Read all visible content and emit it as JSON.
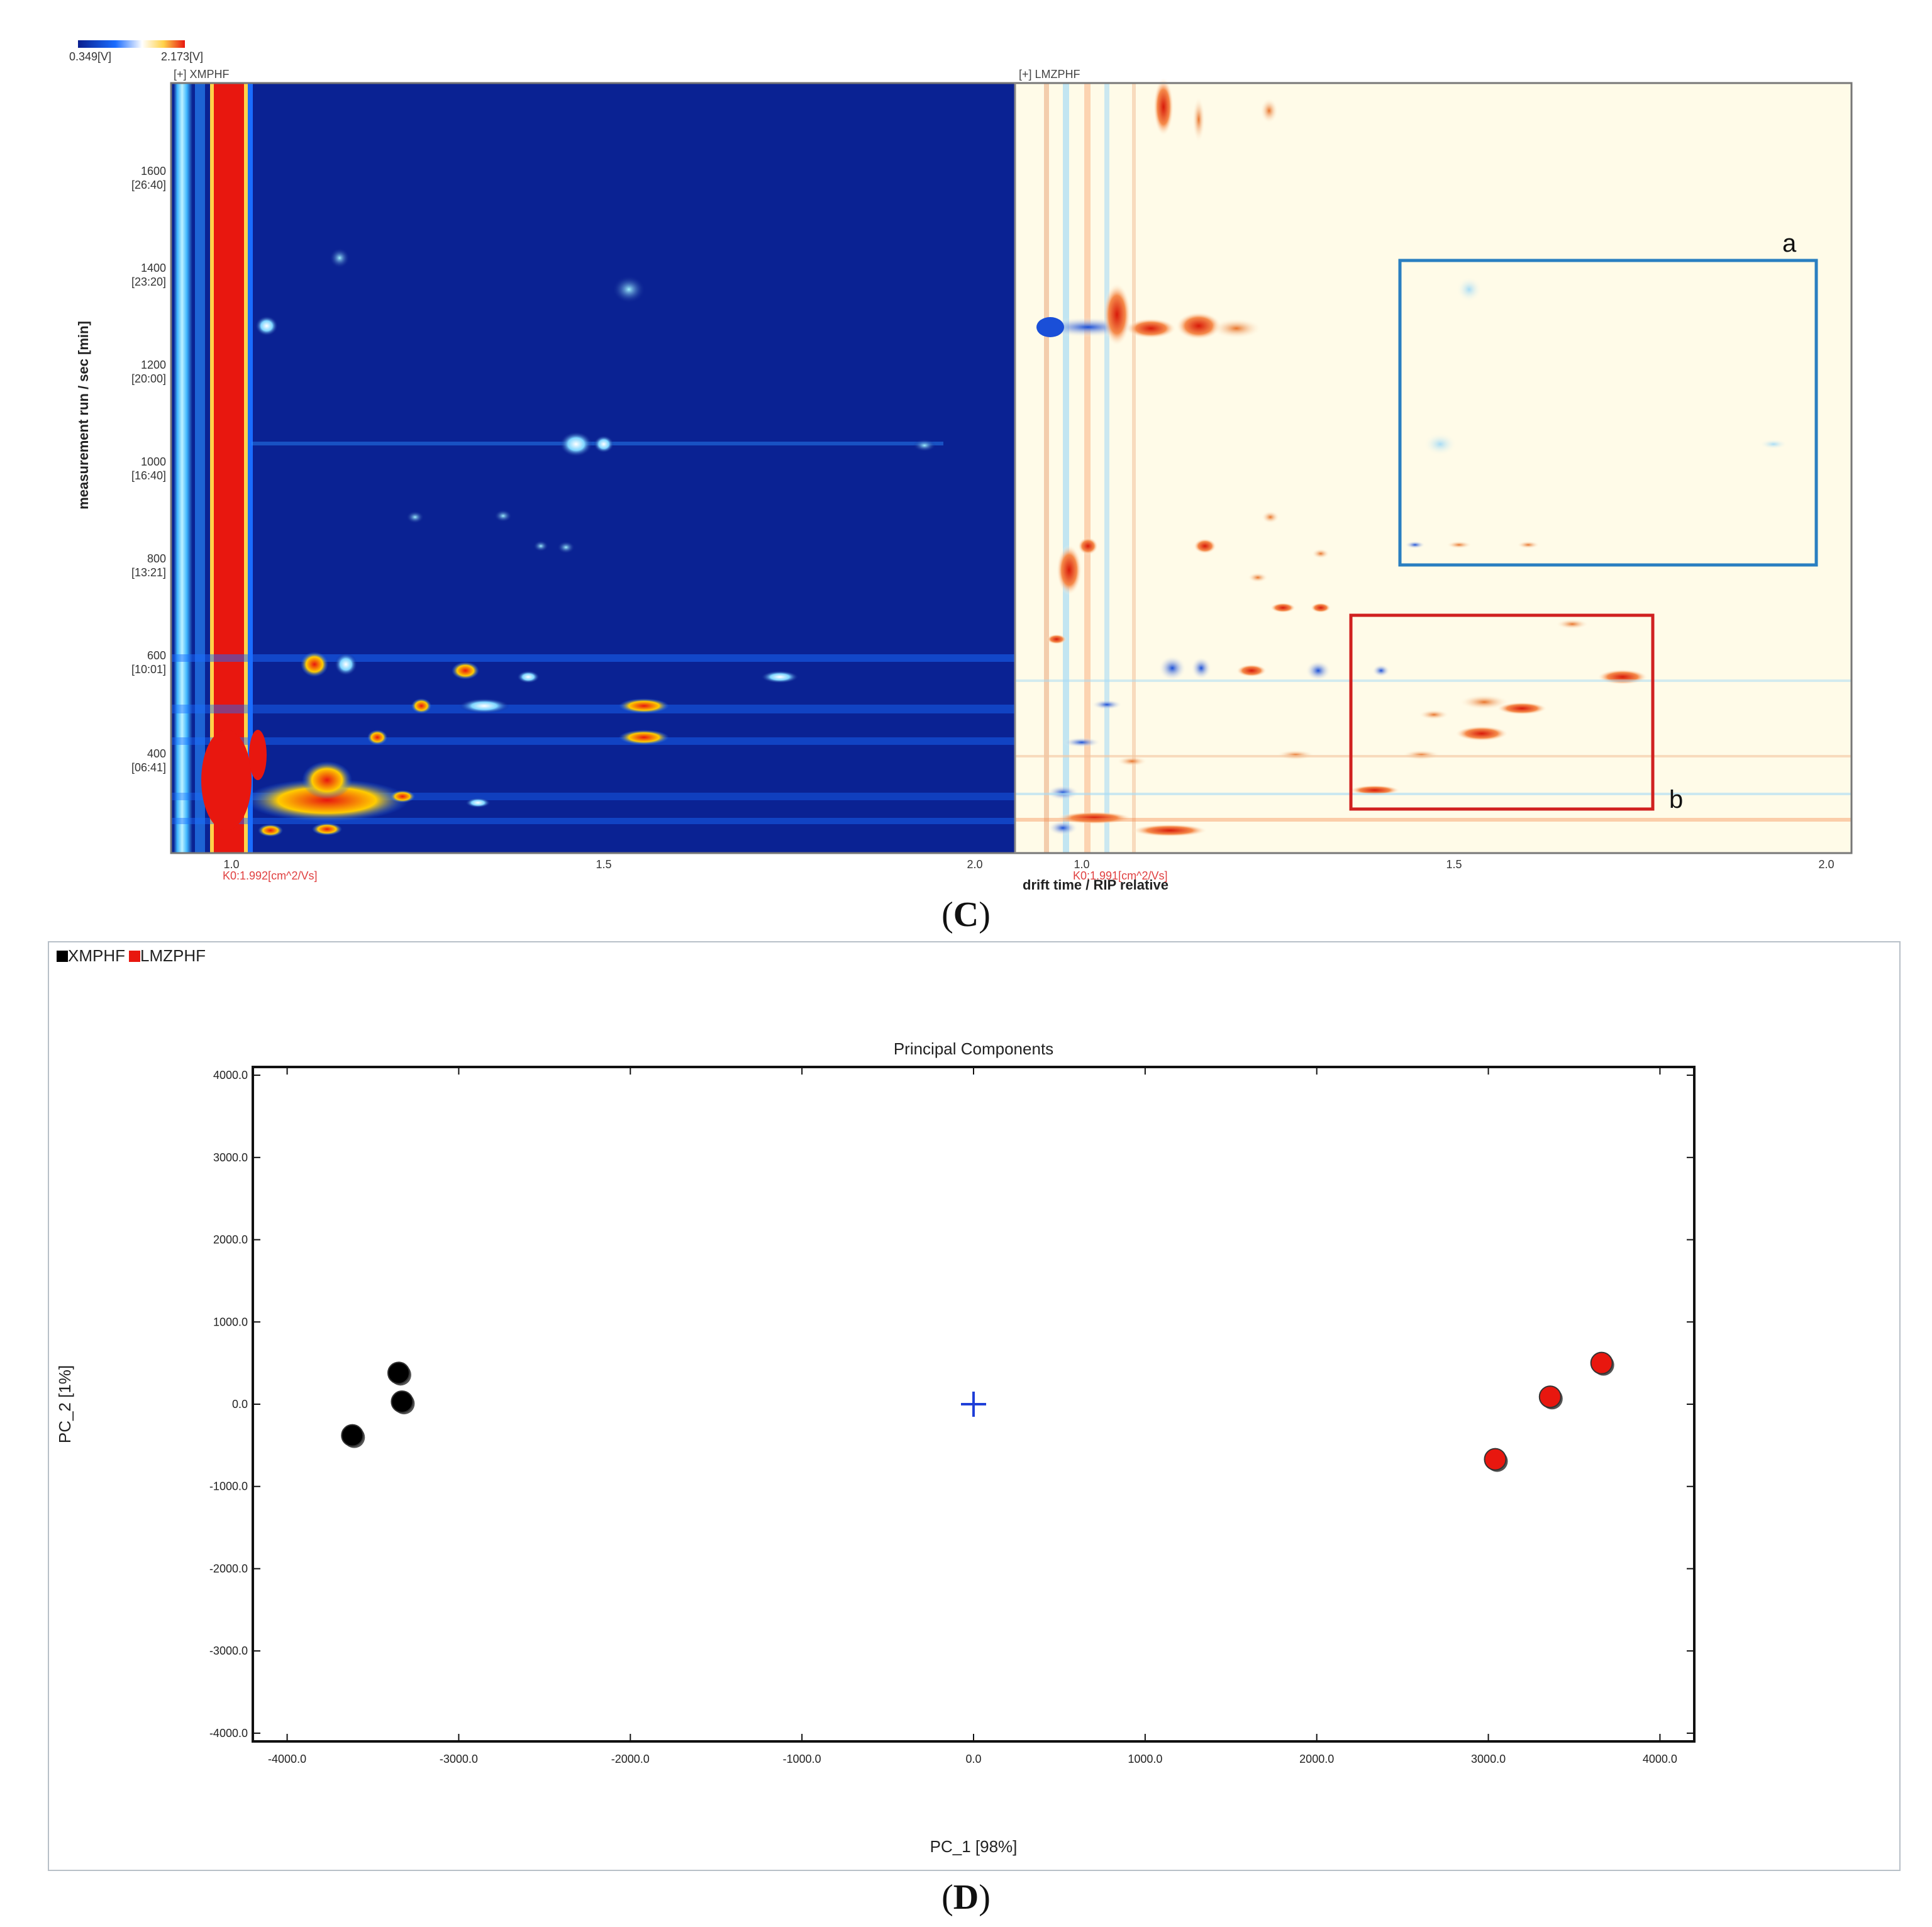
{
  "panel_c": {
    "caption_letter": "C",
    "colorbar": {
      "min_label": "0.349[V]",
      "max_label": "2.173[V]"
    },
    "left_label": "[+] XMPHF",
    "right_label": "[+] LMZPHF",
    "y_axis_label": "measurement run / sec [min]",
    "y_ticks": [
      {
        "value": "1600",
        "time": "[26:40]"
      },
      {
        "value": "1400",
        "time": "[23:20]"
      },
      {
        "value": "1200",
        "time": "[20:00]"
      },
      {
        "value": "1000",
        "time": "[16:40]"
      },
      {
        "value": "800",
        "time": "[13:21]"
      },
      {
        "value": "600",
        "time": "[10:01]"
      },
      {
        "value": "400",
        "time": "[06:41]"
      }
    ],
    "x_ticks": [
      "1.0",
      "1.5",
      "2.0"
    ],
    "left_rip_label": "K0:1.992[cm^2/Vs]",
    "right_rip_label": "K0:1.991[cm^2/Vs]",
    "x_axis_label": "drift time / RIP relative",
    "box_a_label": "a",
    "box_b_label": "b",
    "colors": {
      "box_a": "#2a7fc1",
      "box_b": "#d02020",
      "low": "#0a1f8f",
      "high": "#e8170f"
    }
  },
  "panel_d": {
    "caption_letter": "D",
    "legend": [
      {
        "name": "XMPHF",
        "color": "#000000"
      },
      {
        "name": "LMZPHF",
        "color": "#e8170f"
      }
    ]
  },
  "chart_data": {
    "type": "scatter",
    "title": "Principal Components",
    "xlabel": "PC_1 [98%]",
    "ylabel": "PC_2 [1%]",
    "xlim": [
      -4200,
      4200
    ],
    "ylim": [
      -4100,
      4100
    ],
    "x_ticks": [
      "-4000.0",
      "-3000.0",
      "-2000.0",
      "-1000.0",
      "0.0",
      "1000.0",
      "2000.0",
      "3000.0",
      "4000.0"
    ],
    "y_ticks": [
      "4000.0",
      "3000.0",
      "2000.0",
      "1000.0",
      "0.0",
      "-1000.0",
      "-2000.0",
      "-3000.0",
      "-4000.0"
    ],
    "legend_position": "top-left",
    "series": [
      {
        "name": "XMPHF",
        "color": "#000000",
        "points": [
          {
            "x": -3350,
            "y": 380
          },
          {
            "x": -3330,
            "y": 30
          },
          {
            "x": -3620,
            "y": -380
          }
        ]
      },
      {
        "name": "LMZPHF",
        "color": "#e8170f",
        "points": [
          {
            "x": 3660,
            "y": 500
          },
          {
            "x": 3360,
            "y": 90
          },
          {
            "x": 3040,
            "y": -670
          }
        ]
      }
    ],
    "center_marker": {
      "x": 0,
      "y": 0,
      "color": "#1f3fd8"
    }
  }
}
